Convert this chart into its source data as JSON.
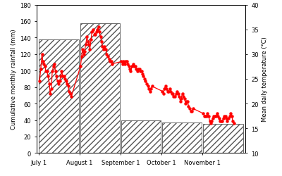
{
  "bar_labels": [
    "July 1",
    "August 1",
    "September 1",
    "October 1",
    "November 1"
  ],
  "bar_heights": [
    138,
    157,
    40,
    37,
    35
  ],
  "bar_positions": [
    0.5,
    1.5,
    2.5,
    3.5,
    4.5
  ],
  "bar_width": 0.98,
  "xlim": [
    -0.05,
    5.05
  ],
  "xticks": [
    0,
    1,
    2,
    3,
    4,
    5
  ],
  "ylim_left": [
    0,
    180
  ],
  "ylim_right": [
    10,
    40
  ],
  "yticks_left": [
    0,
    20,
    40,
    60,
    80,
    100,
    120,
    140,
    160,
    180
  ],
  "yticks_right": [
    10,
    15,
    20,
    25,
    30,
    35,
    40
  ],
  "ylabel_left": "Cumulative monthly rainfall (mm)",
  "ylabel_right": "Mean daily temperature (°C)",
  "hatch_pattern": "////",
  "bar_color": "white",
  "bar_edgecolor": "#555555",
  "temp_data_x": [
    0.02,
    0.05,
    0.08,
    0.1,
    0.13,
    0.15,
    0.18,
    0.2,
    0.23,
    0.26,
    0.28,
    0.31,
    0.33,
    0.36,
    0.38,
    0.41,
    0.43,
    0.46,
    0.49,
    0.51,
    0.54,
    0.56,
    0.59,
    0.62,
    0.64,
    0.67,
    0.69,
    0.72,
    0.74,
    0.77,
    0.8,
    1.02,
    1.05,
    1.07,
    1.1,
    1.12,
    1.15,
    1.18,
    1.2,
    1.23,
    1.25,
    1.28,
    1.3,
    1.33,
    1.36,
    1.38,
    1.41,
    1.43,
    1.46,
    1.48,
    1.51,
    1.54,
    1.56,
    1.59,
    1.61,
    1.64,
    1.66,
    1.69,
    1.72,
    1.74,
    1.77,
    1.79,
    2.02,
    2.05,
    2.07,
    2.1,
    2.12,
    2.15,
    2.18,
    2.2,
    2.23,
    2.25,
    2.28,
    2.31,
    2.33,
    2.36,
    2.38,
    2.41,
    2.43,
    2.46,
    2.49,
    2.51,
    2.54,
    2.56,
    2.59,
    2.61,
    2.64,
    2.67,
    2.69,
    2.72,
    2.74,
    2.77,
    3.02,
    3.05,
    3.07,
    3.1,
    3.12,
    3.15,
    3.18,
    3.2,
    3.23,
    3.25,
    3.28,
    3.3,
    3.33,
    3.36,
    3.38,
    3.41,
    3.43,
    3.46,
    3.48,
    3.51,
    3.54,
    3.56,
    3.59,
    3.61,
    3.64,
    3.66,
    3.69,
    3.72,
    3.74,
    3.77,
    4.02,
    4.05,
    4.07,
    4.1,
    4.12,
    4.15,
    4.18,
    4.2,
    4.23,
    4.25,
    4.28,
    4.31,
    4.33,
    4.36,
    4.38,
    4.41,
    4.43,
    4.46,
    4.49,
    4.51,
    4.54,
    4.56,
    4.59,
    4.61,
    4.64,
    4.67,
    4.69,
    4.72,
    4.74,
    4.77
  ],
  "temp_data_y": [
    24.5,
    27.0,
    30.0,
    28.5,
    28.0,
    27.5,
    26.5,
    26.5,
    25.5,
    24.0,
    22.0,
    23.0,
    26.5,
    27.5,
    28.0,
    26.5,
    25.5,
    24.5,
    24.0,
    24.5,
    25.5,
    26.5,
    25.5,
    25.5,
    25.0,
    24.5,
    24.0,
    23.5,
    22.5,
    22.0,
    21.5,
    27.5,
    29.5,
    31.0,
    30.0,
    30.5,
    32.0,
    33.5,
    32.5,
    32.0,
    31.0,
    33.0,
    34.5,
    35.0,
    34.0,
    34.0,
    34.5,
    35.0,
    35.5,
    34.5,
    33.5,
    32.5,
    31.5,
    31.0,
    31.5,
    31.0,
    30.0,
    29.5,
    29.0,
    28.5,
    28.5,
    28.0,
    28.5,
    28.0,
    28.5,
    28.0,
    28.5,
    28.5,
    28.0,
    27.5,
    27.0,
    26.5,
    27.5,
    28.0,
    27.5,
    27.5,
    27.0,
    26.5,
    27.0,
    27.0,
    26.5,
    26.5,
    26.0,
    25.5,
    25.0,
    24.5,
    24.0,
    23.5,
    23.0,
    22.5,
    23.0,
    23.5,
    22.5,
    22.0,
    23.0,
    23.5,
    23.0,
    22.5,
    22.5,
    23.0,
    22.5,
    22.0,
    22.0,
    21.5,
    21.5,
    22.0,
    22.5,
    22.0,
    21.5,
    20.5,
    21.0,
    22.0,
    21.5,
    21.0,
    20.0,
    20.5,
    20.5,
    19.5,
    19.0,
    18.5,
    18.5,
    19.0,
    18.0,
    17.5,
    17.5,
    17.5,
    18.0,
    17.5,
    16.5,
    16.0,
    16.5,
    17.0,
    17.5,
    17.5,
    17.5,
    18.0,
    17.5,
    17.0,
    16.5,
    16.5,
    16.5,
    17.0,
    17.5,
    17.5,
    17.0,
    16.5,
    17.0,
    17.5,
    18.0,
    17.5,
    16.5,
    16.0
  ]
}
